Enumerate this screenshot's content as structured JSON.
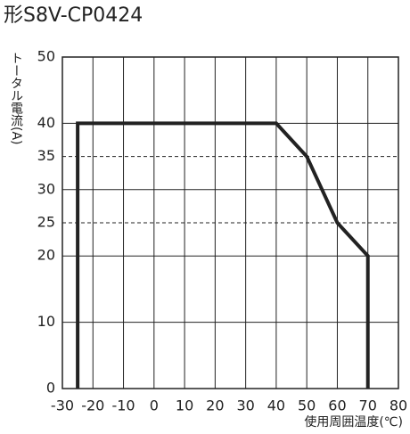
{
  "chart_data": {
    "type": "line",
    "title": "形S8V-CP0424",
    "x_label": "使用周囲温度(℃)",
    "y_label": "トータル電流(A)",
    "series": [
      {
        "color": "#222222",
        "x": [
          -25,
          -25,
          40,
          50,
          60,
          70,
          70
        ],
        "values": [
          0,
          40,
          40,
          35,
          25,
          20,
          0
        ]
      }
    ],
    "xlim": [
      -30,
      80
    ],
    "xticks": [
      -30,
      -20,
      -10,
      0,
      10,
      20,
      30,
      40,
      50,
      60,
      70,
      80
    ],
    "ylim": [
      0,
      50
    ],
    "yticks": [
      0,
      10,
      20,
      25,
      30,
      35,
      40,
      50
    ],
    "grid": true
  }
}
